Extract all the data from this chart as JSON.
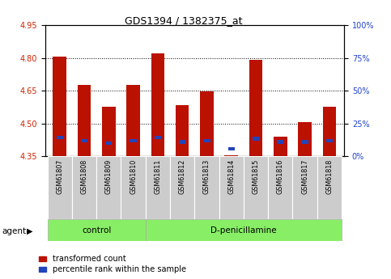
{
  "title": "GDS1394 / 1382375_at",
  "categories": [
    "GSM61807",
    "GSM61808",
    "GSM61809",
    "GSM61810",
    "GSM61811",
    "GSM61812",
    "GSM61813",
    "GSM61814",
    "GSM61815",
    "GSM61816",
    "GSM61817",
    "GSM61818"
  ],
  "red_values": [
    4.805,
    4.675,
    4.575,
    4.675,
    4.82,
    4.585,
    4.645,
    4.355,
    4.79,
    4.44,
    4.505,
    4.575
  ],
  "blue_values": [
    4.435,
    4.42,
    4.41,
    4.42,
    4.435,
    4.415,
    4.42,
    4.385,
    4.43,
    4.415,
    4.415,
    4.42
  ],
  "y_min": 4.35,
  "y_max": 4.95,
  "y_ticks_left": [
    4.35,
    4.5,
    4.65,
    4.8,
    4.95
  ],
  "y_ticks_right": [
    0,
    25,
    50,
    75,
    100
  ],
  "bar_bottom": 4.35,
  "bar_color_red": "#bb1100",
  "bar_color_blue": "#2244bb",
  "plot_bg": "#ffffff",
  "control_label": "control",
  "treatment_label": "D-penicillamine",
  "agent_label": "agent",
  "legend_red": "transformed count",
  "legend_blue": "percentile rank within the sample",
  "n_control": 4,
  "ylabel_color_left": "#cc2200",
  "ylabel_color_right": "#2244cc",
  "agent_band_color": "#88ee66",
  "xticklabel_bg": "#cccccc",
  "title_fontsize": 9,
  "tick_fontsize": 7,
  "legend_fontsize": 7,
  "agent_fontsize": 7.5
}
